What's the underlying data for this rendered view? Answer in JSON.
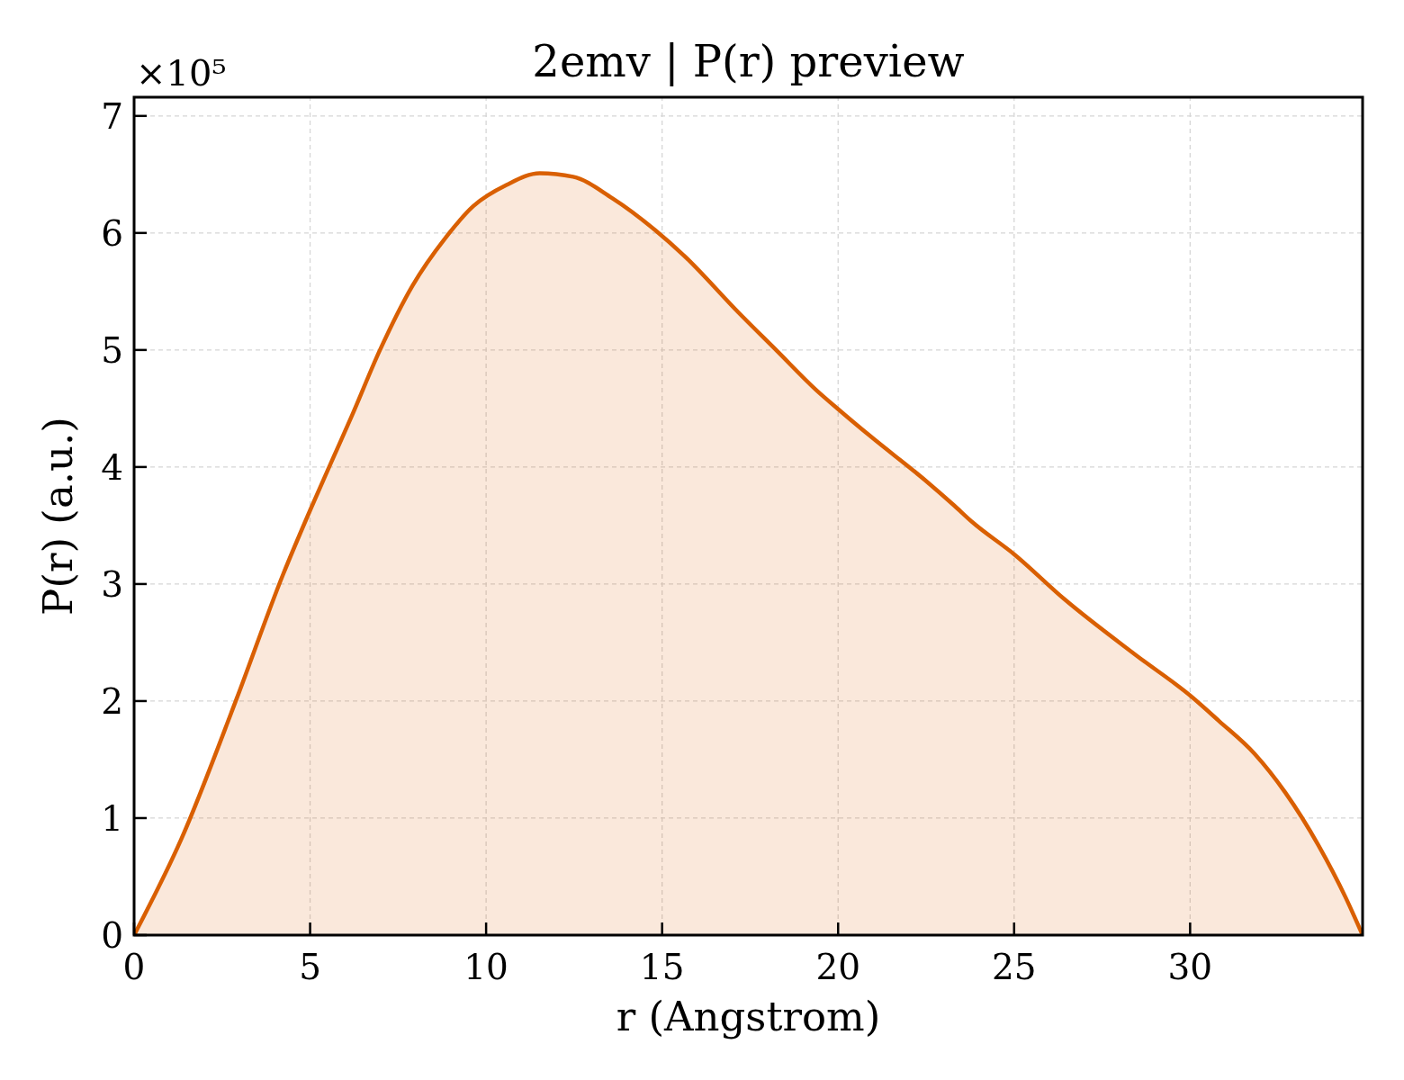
{
  "chart_data": {
    "type": "area",
    "title": "2emv | P(r) preview",
    "xlabel": "r (Angstrom)",
    "ylabel": "P(r) (a.u.)",
    "x": [
      0,
      1.34,
      2.9,
      4.23,
      5.0,
      5.57,
      6.19,
      6.97,
      7.91,
      8.85,
      9.64,
      10.58,
      11.52,
      12.47,
      13.57,
      14.82,
      15.61,
      17.17,
      18.27,
      19.37,
      20.02,
      20.93,
      22.5,
      23.3,
      23.81,
      25.02,
      26.43,
      28.47,
      30.03,
      30.82,
      31.83,
      32.7,
      33.64,
      34.42,
      34.9
    ],
    "series": [
      {
        "color": "#d95f02",
        "values": [
          0,
          0.82,
          2.01,
          3.08,
          3.63,
          4.02,
          4.44,
          4.99,
          5.55,
          5.96,
          6.23,
          6.41,
          6.51,
          6.48,
          6.3,
          6.02,
          5.81,
          5.32,
          4.99,
          4.66,
          4.49,
          4.26,
          3.88,
          3.67,
          3.53,
          3.25,
          2.87,
          2.39,
          2.04,
          1.83,
          1.55,
          1.22,
          0.77,
          0.32,
          0
        ]
      }
    ],
    "xlim": [
      0,
      34.9
    ],
    "ylim": [
      0,
      7.16
    ],
    "xticks": [
      0,
      5,
      10,
      15,
      20,
      25,
      30
    ],
    "yticks": [
      0,
      1,
      2,
      3,
      4,
      5,
      6,
      7
    ],
    "grid": true,
    "annotations": [
      "×10⁵"
    ]
  }
}
